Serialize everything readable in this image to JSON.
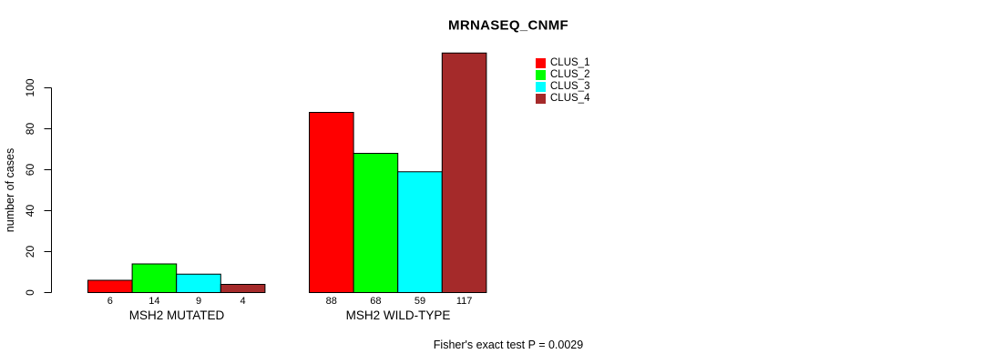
{
  "figure": {
    "title": "MRNASEQ_CNMF",
    "y_axis_label": "number of cases",
    "caption": "Fisher's exact test P = 0.0029"
  },
  "chart_data": {
    "type": "bar",
    "title": "MRNASEQ_CNMF",
    "xlabel": "",
    "ylabel": "number of cases",
    "ylim": [
      0,
      100
    ],
    "yticks": [
      0,
      20,
      40,
      60,
      80,
      100
    ],
    "grid": false,
    "legend_position": "top-right",
    "bar_borders": "black",
    "categories": [
      "MSH2 MUTATED",
      "MSH2 WILD-TYPE"
    ],
    "series": [
      {
        "name": "CLUS_1",
        "color": "#FF0000",
        "values": [
          6,
          88
        ]
      },
      {
        "name": "CLUS_2",
        "color": "#00FF00",
        "values": [
          14,
          68
        ]
      },
      {
        "name": "CLUS_3",
        "color": "#00FFFF",
        "values": [
          9,
          59
        ]
      },
      {
        "name": "CLUS_4",
        "color": "#A52A2A",
        "values": [
          4,
          117
        ]
      }
    ],
    "bar_value_labels": [
      [
        6,
        14,
        9,
        4
      ],
      [
        88,
        68,
        59,
        117
      ]
    ],
    "annotation": "Fisher's exact test P = 0.0029"
  }
}
